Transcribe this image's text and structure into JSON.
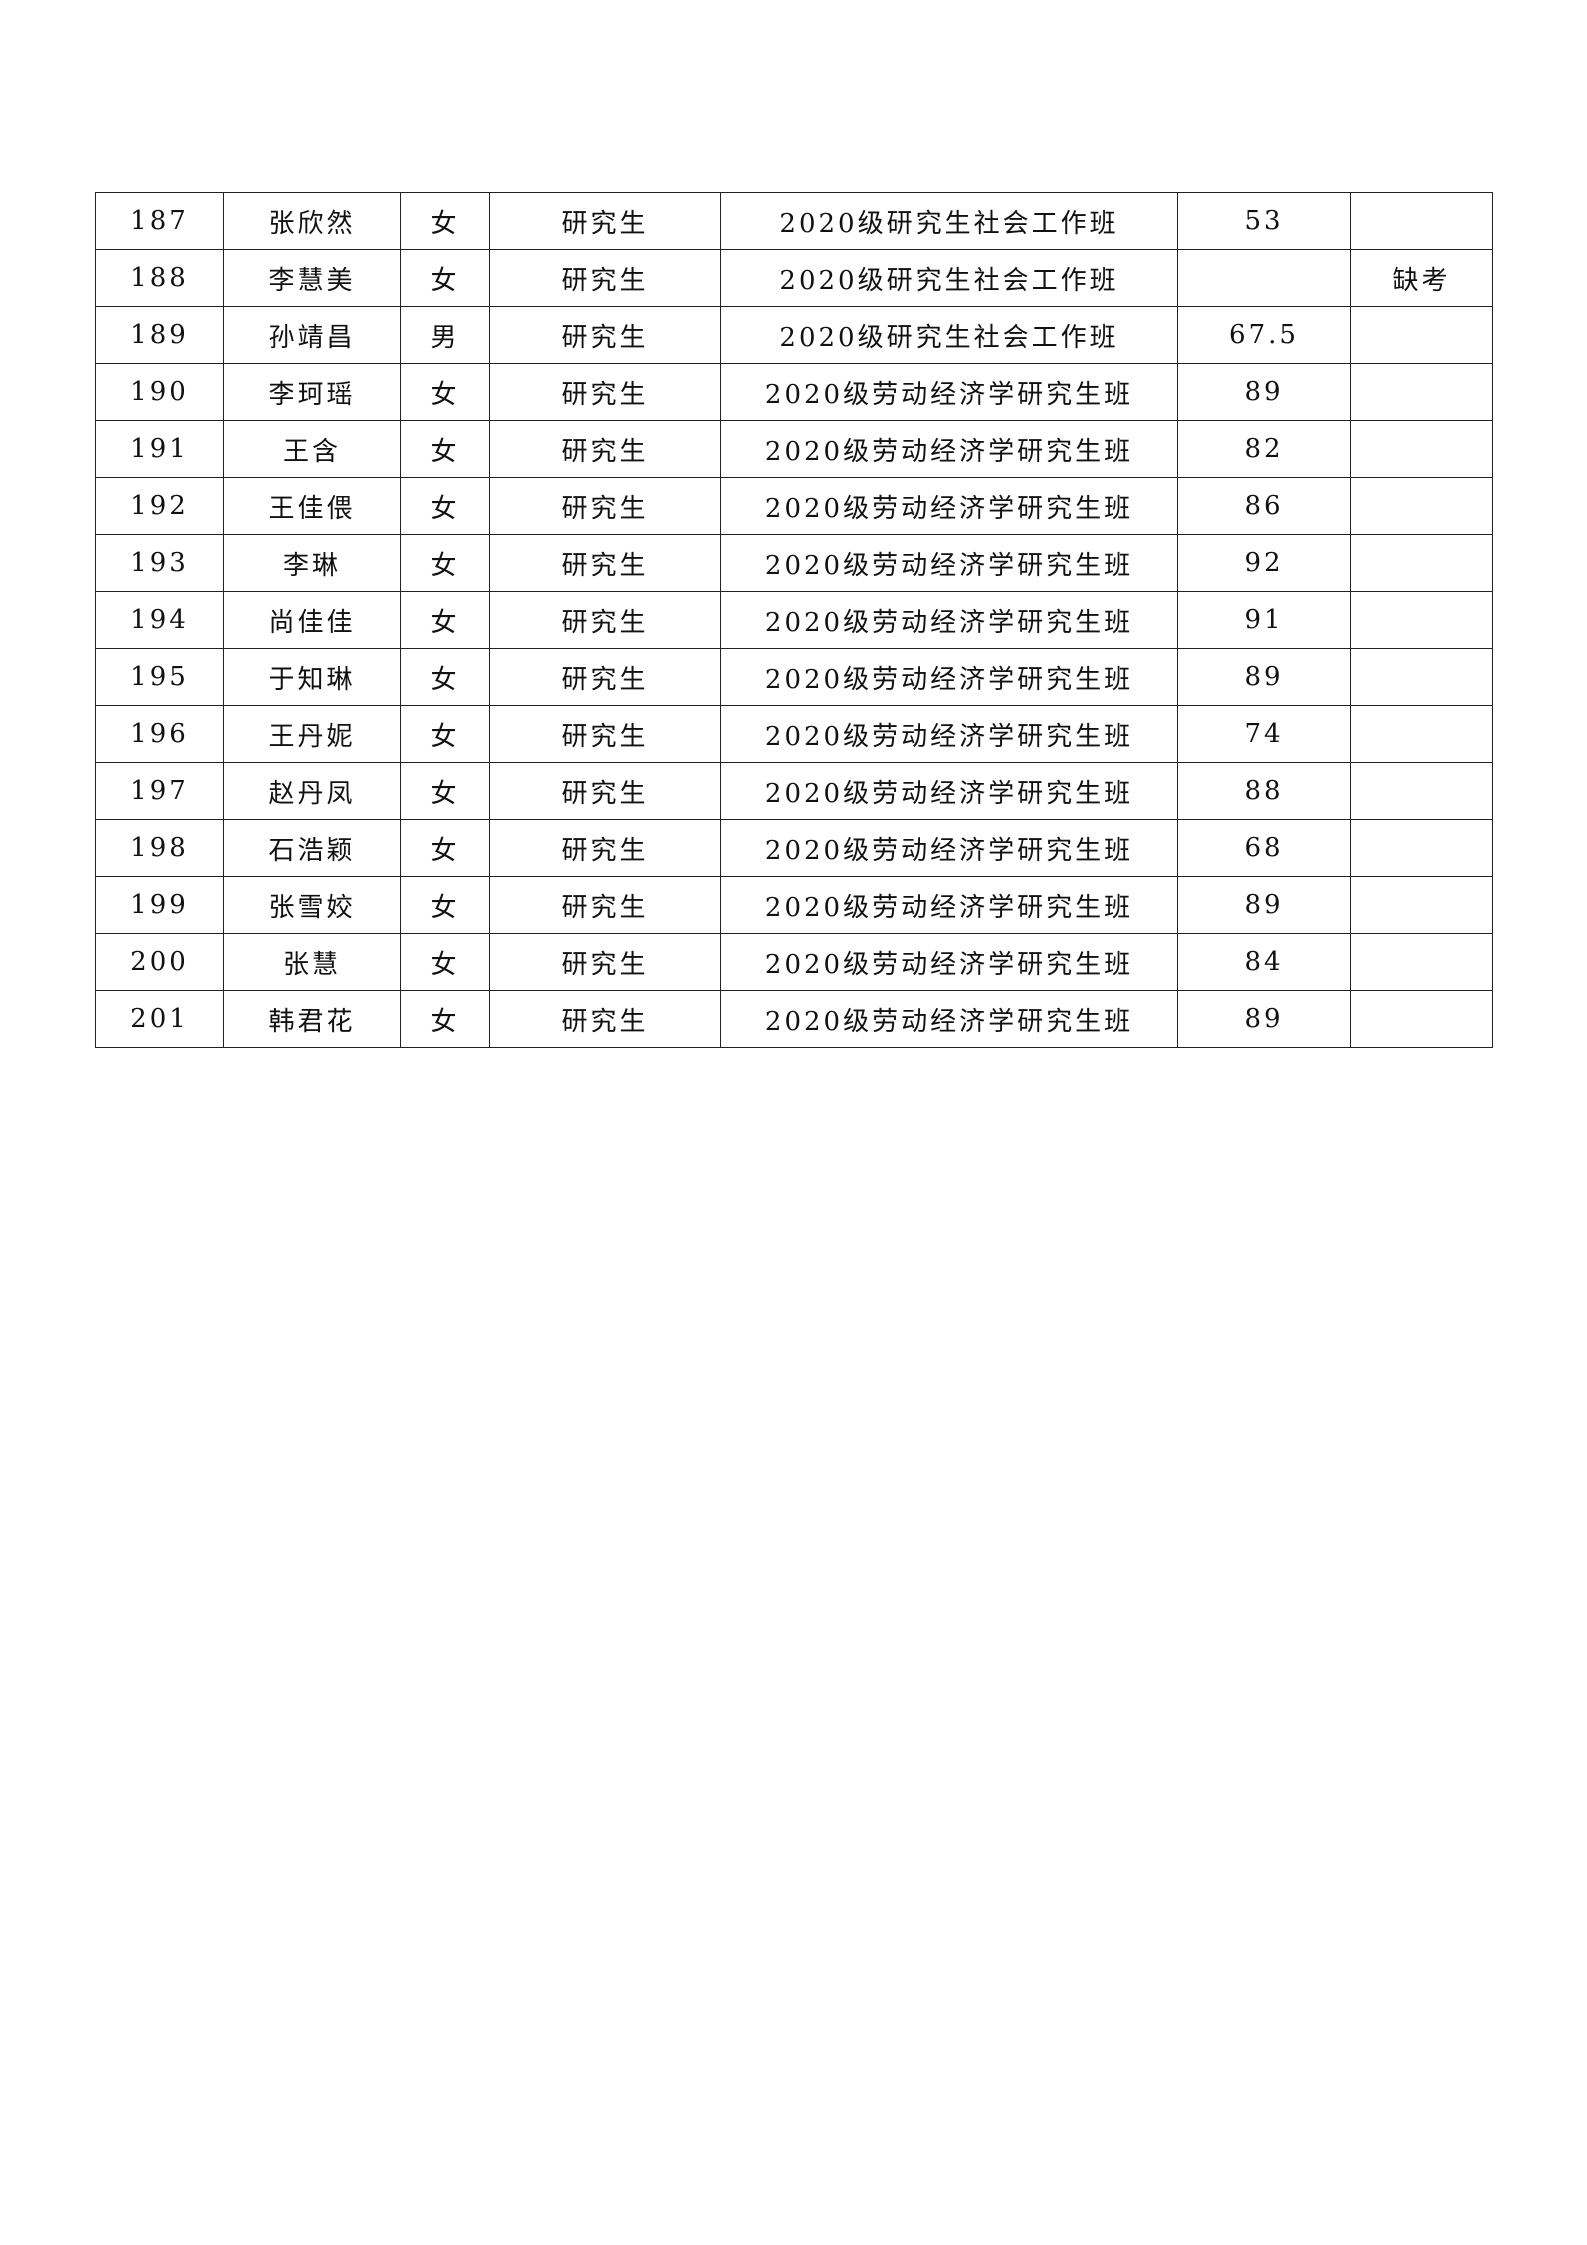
{
  "rows": [
    {
      "no": "187",
      "name": "张欣然",
      "gender": "女",
      "level": "研究生",
      "class": "2020级研究生社会工作班",
      "score": "53",
      "note": ""
    },
    {
      "no": "188",
      "name": "李慧美",
      "gender": "女",
      "level": "研究生",
      "class": "2020级研究生社会工作班",
      "score": "",
      "note": "缺考"
    },
    {
      "no": "189",
      "name": "孙靖昌",
      "gender": "男",
      "level": "研究生",
      "class": "2020级研究生社会工作班",
      "score": "67.5",
      "note": ""
    },
    {
      "no": "190",
      "name": "李珂瑶",
      "gender": "女",
      "level": "研究生",
      "class": "2020级劳动经济学研究生班",
      "score": "89",
      "note": ""
    },
    {
      "no": "191",
      "name": "王含",
      "gender": "女",
      "level": "研究生",
      "class": "2020级劳动经济学研究生班",
      "score": "82",
      "note": ""
    },
    {
      "no": "192",
      "name": "王佳偎",
      "gender": "女",
      "level": "研究生",
      "class": "2020级劳动经济学研究生班",
      "score": "86",
      "note": ""
    },
    {
      "no": "193",
      "name": "李琳",
      "gender": "女",
      "level": "研究生",
      "class": "2020级劳动经济学研究生班",
      "score": "92",
      "note": ""
    },
    {
      "no": "194",
      "name": "尚佳佳",
      "gender": "女",
      "level": "研究生",
      "class": "2020级劳动经济学研究生班",
      "score": "91",
      "note": ""
    },
    {
      "no": "195",
      "name": "于知琳",
      "gender": "女",
      "level": "研究生",
      "class": "2020级劳动经济学研究生班",
      "score": "89",
      "note": ""
    },
    {
      "no": "196",
      "name": "王丹妮",
      "gender": "女",
      "level": "研究生",
      "class": "2020级劳动经济学研究生班",
      "score": "74",
      "note": ""
    },
    {
      "no": "197",
      "name": "赵丹凤",
      "gender": "女",
      "level": "研究生",
      "class": "2020级劳动经济学研究生班",
      "score": "88",
      "note": ""
    },
    {
      "no": "198",
      "name": "石浩颖",
      "gender": "女",
      "level": "研究生",
      "class": "2020级劳动经济学研究生班",
      "score": "68",
      "note": ""
    },
    {
      "no": "199",
      "name": "张雪姣",
      "gender": "女",
      "level": "研究生",
      "class": "2020级劳动经济学研究生班",
      "score": "89",
      "note": ""
    },
    {
      "no": "200",
      "name": "张慧",
      "gender": "女",
      "level": "研究生",
      "class": "2020级劳动经济学研究生班",
      "score": "84",
      "note": ""
    },
    {
      "no": "201",
      "name": "韩君花",
      "gender": "女",
      "level": "研究生",
      "class": "2020级劳动经济学研究生班",
      "score": "89",
      "note": ""
    }
  ]
}
